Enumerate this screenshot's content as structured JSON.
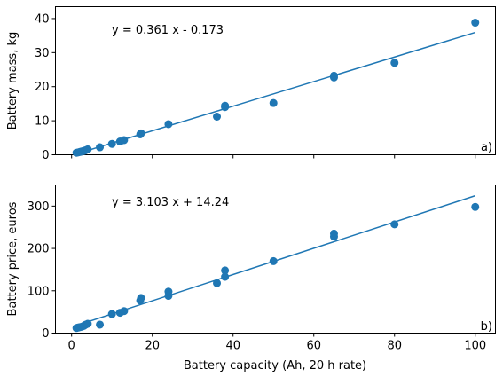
{
  "colors": {
    "series": "#1f77b4",
    "axes": "#000000",
    "background": "#ffffff"
  },
  "chart_data": [
    {
      "type": "scatter",
      "panel": "a)",
      "equation": "y = 0.361 x - 0.173",
      "xlabel": "",
      "ylabel": "Battery mass, kg",
      "xlim": [
        -4,
        105
      ],
      "ylim": [
        0,
        43.5
      ],
      "x_ticks": [
        0,
        20,
        40,
        60,
        80,
        100
      ],
      "x_tick_labels_shown": false,
      "y_ticks": [
        0,
        10,
        20,
        30,
        40
      ],
      "y_tick_labels": [
        "0",
        "10",
        "20",
        "30",
        "40"
      ],
      "fit_line": {
        "slope": 0.361,
        "intercept": -0.173,
        "x_range": [
          1.2,
          100
        ]
      },
      "points": [
        [
          1.2,
          0.6
        ],
        [
          1.6,
          0.7
        ],
        [
          2.0,
          0.8
        ],
        [
          2.3,
          0.9
        ],
        [
          2.6,
          1.0
        ],
        [
          3.0,
          1.1
        ],
        [
          3.4,
          1.3
        ],
        [
          4.0,
          1.6
        ],
        [
          7.0,
          2.2
        ],
        [
          10.0,
          3.2
        ],
        [
          12.0,
          3.9
        ],
        [
          13.0,
          4.3
        ],
        [
          17.0,
          6.0
        ],
        [
          17.2,
          6.3
        ],
        [
          24.0,
          9.0
        ],
        [
          36.0,
          11.2
        ],
        [
          38.0,
          14.0
        ],
        [
          38.0,
          14.4
        ],
        [
          50.0,
          15.2
        ],
        [
          65.0,
          22.7
        ],
        [
          65.0,
          23.2
        ],
        [
          80.0,
          27.0
        ],
        [
          100.0,
          38.8
        ]
      ]
    },
    {
      "type": "scatter",
      "panel": "b)",
      "equation": "y = 3.103 x + 14.24",
      "xlabel": "Battery capacity (Ah, 20 h  rate)",
      "ylabel": "Battery price, euros",
      "xlim": [
        -4,
        105
      ],
      "ylim": [
        0,
        350
      ],
      "x_ticks": [
        0,
        20,
        40,
        60,
        80,
        100
      ],
      "x_tick_labels": [
        "0",
        "20",
        "40",
        "60",
        "80",
        "100"
      ],
      "y_ticks": [
        0,
        100,
        200,
        300
      ],
      "y_tick_labels": [
        "0",
        "100",
        "200",
        "300"
      ],
      "fit_line": {
        "slope": 3.103,
        "intercept": 14.24,
        "x_range": [
          1.2,
          100
        ]
      },
      "points": [
        [
          1.2,
          12
        ],
        [
          1.6,
          13
        ],
        [
          2.0,
          14
        ],
        [
          2.5,
          15
        ],
        [
          3.0,
          17
        ],
        [
          3.5,
          20
        ],
        [
          4.0,
          22
        ],
        [
          7.0,
          20
        ],
        [
          10.0,
          45
        ],
        [
          12.0,
          48
        ],
        [
          13.0,
          52
        ],
        [
          17.0,
          77
        ],
        [
          17.2,
          83
        ],
        [
          24.0,
          88
        ],
        [
          24.0,
          98
        ],
        [
          36.0,
          118
        ],
        [
          38.0,
          133
        ],
        [
          38.0,
          148
        ],
        [
          50.0,
          170
        ],
        [
          65.0,
          228
        ],
        [
          65.0,
          235
        ],
        [
          80.0,
          257
        ],
        [
          100.0,
          298
        ]
      ]
    }
  ]
}
